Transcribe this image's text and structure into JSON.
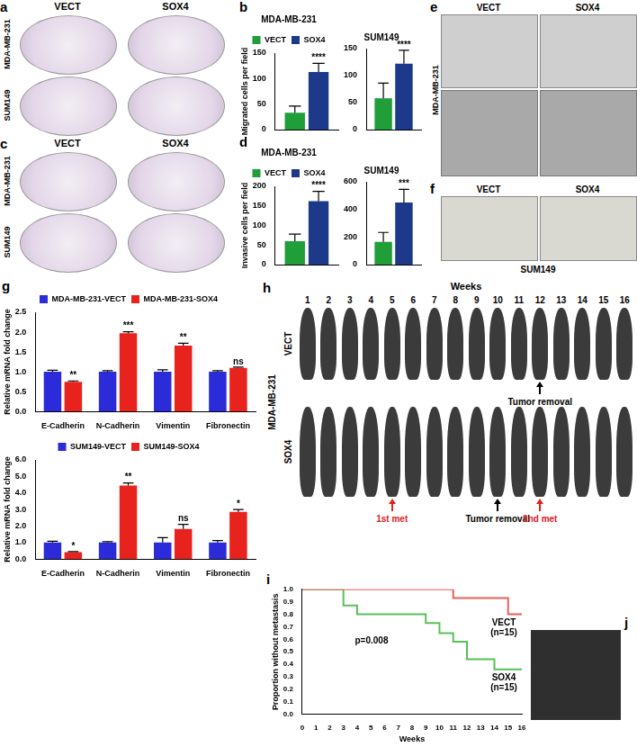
{
  "panels": {
    "a": {
      "label": "a",
      "columns": [
        "VECT",
        "SOX4"
      ],
      "rows": [
        "MDA-MB-231",
        "SUM149"
      ]
    },
    "c": {
      "label": "c",
      "columns": [
        "VECT",
        "SOX4"
      ],
      "rows": [
        "MDA-MB-231",
        "SUM149"
      ]
    },
    "e": {
      "label": "e",
      "columns": [
        "VECT",
        "SOX4"
      ],
      "row_label": "MDA-MB-231"
    },
    "f": {
      "label": "f",
      "columns": [
        "VECT",
        "SOX4"
      ],
      "caption": "SUM149"
    },
    "h": {
      "label": "h",
      "header": "Weeks",
      "weeks": [
        1,
        2,
        3,
        4,
        5,
        6,
        7,
        8,
        9,
        10,
        11,
        12,
        13,
        14,
        15,
        16
      ],
      "cell_line": "MDA-MB-231",
      "rows": [
        {
          "name": "VECT",
          "annotations": [
            {
              "week": 12,
              "text": "Tumor removal",
              "color": "#000000"
            }
          ]
        },
        {
          "name": "SOX4",
          "annotations": [
            {
              "week": 5,
              "text": "1st met",
              "color": "#e0201b"
            },
            {
              "week": 10,
              "text": "Tumor removal",
              "color": "#000000"
            },
            {
              "week": 12,
              "text": "2nd met",
              "color": "#e0201b"
            }
          ]
        }
      ]
    },
    "j": {
      "label": "j"
    }
  },
  "chart_data": [
    {
      "panel_label": "b",
      "type": "bar",
      "title": "MDA-MB-231",
      "y_label": "Migrated cells per field",
      "categories": [
        null
      ],
      "series": [
        {
          "name": "VECT",
          "color": "#1f9e3a",
          "values": [
            33
          ],
          "errors": [
            13
          ]
        },
        {
          "name": "SOX4",
          "color": "#1d3a8a",
          "values": [
            113
          ],
          "errors": [
            17
          ],
          "significance": [
            "****"
          ]
        }
      ],
      "ylim": [
        0,
        150
      ],
      "yticks": [
        0,
        50,
        100,
        150
      ],
      "legend": "top",
      "tick_labels": "y",
      "grid": false
    },
    {
      "type": "bar",
      "title": "SUM149",
      "categories": [
        null
      ],
      "series": [
        {
          "name": "VECT",
          "color": "#1f9e3a",
          "values": [
            58
          ],
          "errors": [
            28
          ]
        },
        {
          "name": "SOX4",
          "color": "#1d3a8a",
          "values": [
            122
          ],
          "errors": [
            25
          ],
          "significance": [
            "****"
          ]
        }
      ],
      "ylim": [
        0,
        150
      ],
      "yticks": [
        0,
        50,
        100,
        150
      ],
      "tick_labels": "y",
      "grid": false
    },
    {
      "panel_label": "d",
      "type": "bar",
      "title": "MDA-MB-231",
      "y_label": "Invasive cells per field",
      "categories": [
        null
      ],
      "series": [
        {
          "name": "VECT",
          "color": "#1f9e3a",
          "values": [
            60
          ],
          "errors": [
            18
          ]
        },
        {
          "name": "SOX4",
          "color": "#1d3a8a",
          "values": [
            162
          ],
          "errors": [
            25
          ],
          "significance": [
            "****"
          ]
        }
      ],
      "ylim": [
        0,
        200
      ],
      "yticks": [
        0,
        50,
        100,
        150,
        200
      ],
      "legend": "top",
      "tick_labels": "y",
      "grid": false
    },
    {
      "type": "bar",
      "title": "SUM149",
      "categories": [
        null
      ],
      "series": [
        {
          "name": "VECT",
          "color": "#1f9e3a",
          "values": [
            165
          ],
          "errors": [
            68
          ]
        },
        {
          "name": "SOX4",
          "color": "#1d3a8a",
          "values": [
            450
          ],
          "errors": [
            95
          ],
          "significance": [
            "***"
          ]
        }
      ],
      "ylim": [
        0,
        600
      ],
      "yticks": [
        0,
        200,
        400,
        600
      ],
      "tick_labels": "y",
      "grid": false
    },
    {
      "panel_label": "g",
      "type": "bar",
      "y_label": "Relative mRNA fold change",
      "categories": [
        "E-Cadherin",
        "N-Cadherin",
        "Vimentin",
        "Fibronectin"
      ],
      "series": [
        {
          "name": "MDA-MB-231-VECT",
          "color": "#2b2bd9",
          "values": [
            1,
            1,
            1,
            1
          ],
          "errors": [
            0.04,
            0.03,
            0.05,
            0.03
          ]
        },
        {
          "name": "MDA-MB-231-SOX4",
          "color": "#e8221c",
          "values": [
            0.75,
            1.97,
            1.66,
            1.1
          ],
          "errors": [
            0.02,
            0.04,
            0.06,
            0.02
          ],
          "significance": [
            "**",
            "***",
            "**",
            "ns"
          ]
        }
      ],
      "ylim": [
        0,
        2.5
      ],
      "yticks": [
        {
          "value": 0,
          "label": "0.0"
        },
        0.5,
        {
          "value": 1,
          "label": "1.0"
        },
        1.5,
        {
          "value": 2,
          "label": "2.0"
        },
        2.5
      ],
      "legend": "top",
      "grid": false
    },
    {
      "type": "bar",
      "y_label": "Relative mRNA fold change",
      "categories": [
        "E-Cadherin",
        "N-Cadherin",
        "Vimentin",
        "Fibronectin"
      ],
      "series": [
        {
          "name": "SUM149-VECT",
          "color": "#2b2bd9",
          "values": [
            1,
            1,
            1,
            1
          ],
          "errors": [
            0.08,
            0.05,
            0.3,
            0.12
          ]
        },
        {
          "name": "SUM149-SOX4",
          "color": "#e8221c",
          "values": [
            0.42,
            4.45,
            1.82,
            2.85
          ],
          "errors": [
            0.03,
            0.15,
            0.28,
            0.15
          ],
          "significance": [
            "*",
            "**",
            "ns",
            "*"
          ]
        }
      ],
      "ylim": [
        0,
        6
      ],
      "yticks": [
        {
          "value": 0,
          "label": "0.0"
        },
        {
          "value": 1,
          "label": "1.0"
        },
        {
          "value": 2,
          "label": "2.0"
        },
        {
          "value": 3,
          "label": "3.0"
        },
        {
          "value": 4,
          "label": "4.0"
        },
        {
          "value": 5,
          "label": "5.0"
        },
        {
          "value": 6,
          "label": "6.0"
        }
      ],
      "legend": "top",
      "grid": false
    },
    {
      "panel_label": "i",
      "type": "line",
      "x_label": "Weeks",
      "y_label": "Proportion without metastasis",
      "line_style": "stepped",
      "xlim": [
        0,
        16
      ],
      "xticks": [
        0,
        1,
        2,
        3,
        4,
        5,
        6,
        7,
        8,
        9,
        10,
        11,
        12,
        13,
        14,
        15,
        16
      ],
      "ylim": [
        0,
        1
      ],
      "yticks": [
        {
          "value": 0,
          "label": "0.0"
        },
        0.1,
        0.2,
        0.3,
        0.4,
        0.5,
        0.6,
        0.7,
        0.8,
        0.9,
        {
          "value": 1,
          "label": "1.0"
        }
      ],
      "series": [
        {
          "name": "VECT (n=15)",
          "color": "#e8605a",
          "x": [
            0,
            11,
            15,
            16
          ],
          "values": [
            1,
            0.93,
            0.8,
            0.8
          ]
        },
        {
          "name": "SOX4 (n=15)",
          "color": "#59c059",
          "x": [
            0,
            3,
            4,
            9,
            10,
            11,
            12,
            14,
            16
          ],
          "values": [
            1,
            0.87,
            0.8,
            0.73,
            0.65,
            0.58,
            0.44,
            0.36,
            0.36
          ]
        }
      ],
      "annotations": [
        "p=0.008"
      ],
      "grid": false
    }
  ]
}
